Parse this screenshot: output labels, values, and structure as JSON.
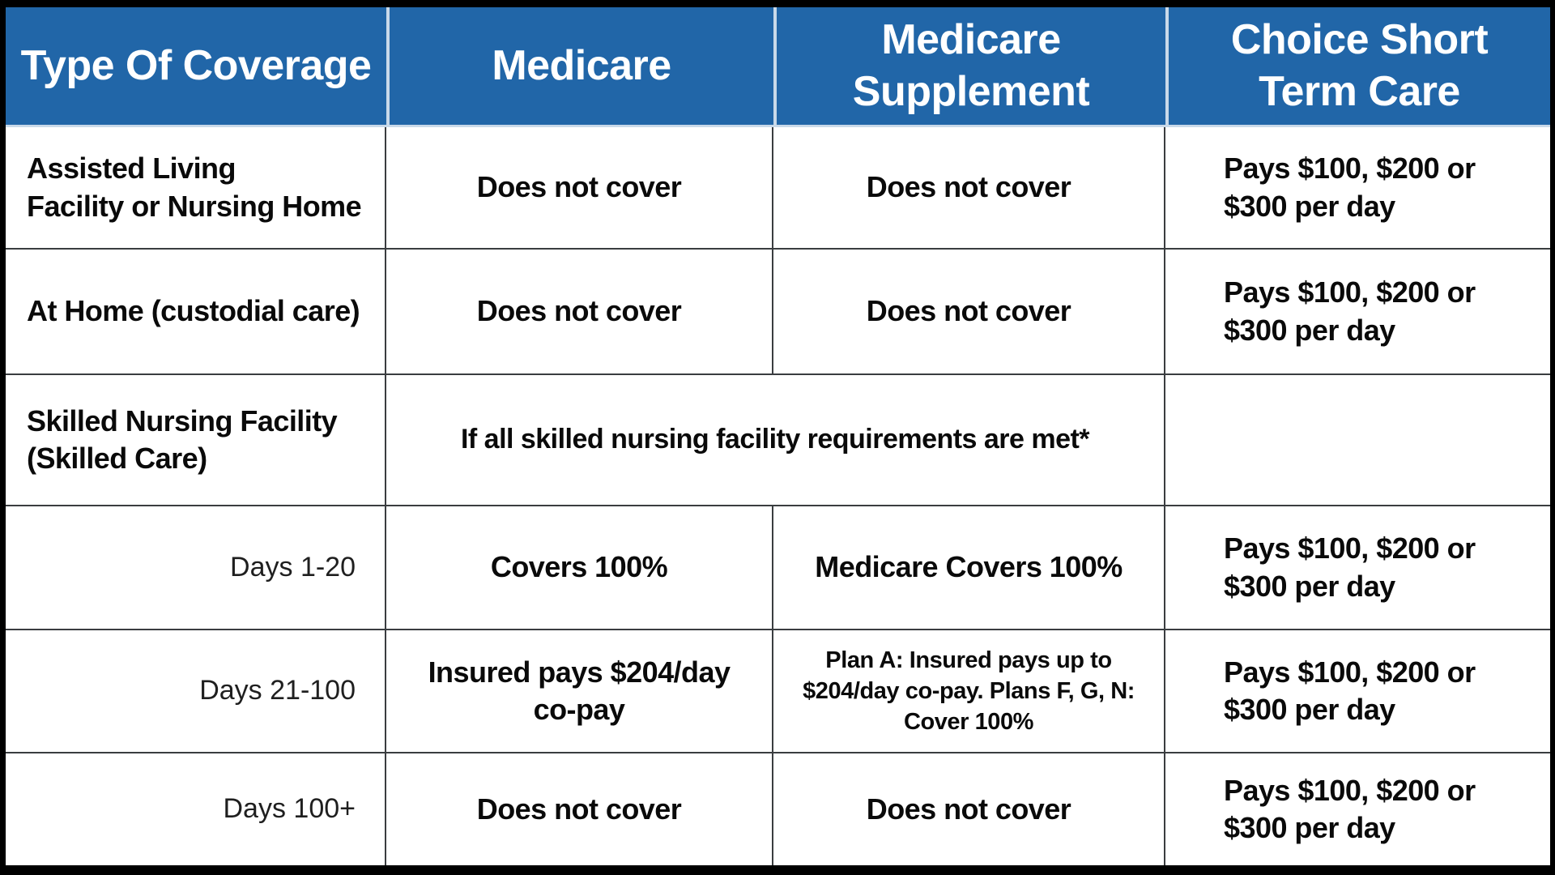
{
  "table": {
    "title": "Medicare vs Medicare Supplement vs Choice Short Term Care coverage comparison",
    "colors": {
      "header_bg": "#2166A8",
      "header_text": "#FFFFFF",
      "header_divider": "#C9D9E9",
      "body_text": "#0A0A0A",
      "grid_line": "#3A3D40",
      "outer_border": "#000000"
    },
    "columns": [
      {
        "label": "Type Of Coverage"
      },
      {
        "label": "Medicare"
      },
      {
        "label": "Medicare\nSupplement"
      },
      {
        "label": "Choice Short\nTerm Care"
      }
    ],
    "rows": [
      {
        "coverage": "Assisted Living\nFacility or Nursing Home",
        "medicare": "Does not cover",
        "supplement": "Does not cover",
        "choice": "Pays $100, $200 or\n$300 per day"
      },
      {
        "coverage": "At Home (custodial care)",
        "medicare": "Does not cover",
        "supplement": "Does not cover",
        "choice": "Pays $100, $200 or\n$300 per day"
      },
      {
        "coverage": "Skilled Nursing Facility\n(Skilled Care)",
        "merged_note": "If all skilled nursing facility requirements are met*",
        "choice": ""
      },
      {
        "coverage": "Days 1-20",
        "medicare": "Covers 100%",
        "supplement": "Medicare Covers 100%",
        "choice": "Pays $100, $200 or\n$300 per day"
      },
      {
        "coverage": "Days 21-100",
        "medicare": "Insured pays $204/day\nco-pay",
        "supplement": "Plan A: Insured pays up to\n$204/day co-pay. Plans F, G, N:\nCover 100%",
        "choice": "Pays $100, $200 or\n$300 per day"
      },
      {
        "coverage": "Days 100+",
        "medicare": "Does not cover",
        "supplement": "Does not cover",
        "choice": "Pays $100, $200 or\n$300 per day"
      }
    ]
  }
}
